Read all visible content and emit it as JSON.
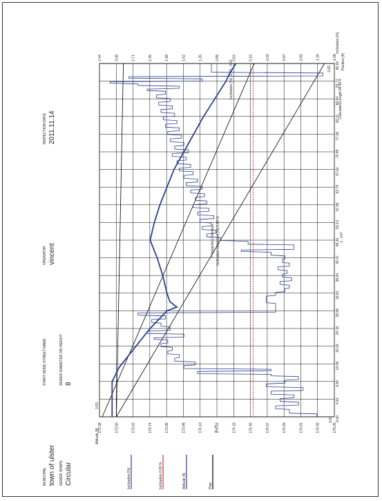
{
  "header": {
    "municipal_label": "MUNICIPAL",
    "municipal_value": "town of ulster",
    "street_label": "START NODE STREET NAME",
    "street_value": "",
    "operator_label": "OPERATOR",
    "operator_value": "vincent",
    "date_label": "INSPECTION DATE",
    "date_value": "2011.11.14",
    "shape_label": "SEWER SHAPE",
    "shape_value": "Circular",
    "diameter_label": "SEWER DIAMETER OR HEIGHT",
    "diameter_value": "8"
  },
  "colors": {
    "pipe": "#000000",
    "altitude": "#2a3f8c",
    "inclination": "#2a3f8c",
    "reference": "#e03030",
    "grid": "#000000"
  },
  "chart_data": {
    "type": "line",
    "position_axis": {
      "label": "Position [ft]",
      "ticks": [
        "0.00",
        "4.83",
        "9.66",
        "14.49",
        "19.32",
        "24.15",
        "28.98",
        "33.81",
        "38.64",
        "43.47",
        "48.30",
        "53.13",
        "57.96",
        "62.79",
        "67.62",
        "72.45",
        "77.28",
        "82.11",
        "86.94",
        "91.77",
        "96.60"
      ],
      "max": 96.6
    },
    "altitude_axis": {
      "label": "Altitude [ft]",
      "ticks": [
        "173.38",
        "173.50",
        "173.62",
        "173.74",
        "173.86",
        "173.98",
        "174.10",
        "174.22",
        "174.33",
        "174.45",
        "174.57",
        "174.69",
        "174.81",
        "174.93",
        "175.05"
      ],
      "range": [
        173.38,
        175.05
      ]
    },
    "inclination_axis": {
      "label": "Inclination [%]",
      "ticks": [
        "-1.68",
        "-1.30",
        "-0.93",
        "-0.57",
        "-0.20",
        "0.16",
        "0.53",
        "0.89",
        "1.26",
        "1.62",
        "1.98",
        "2.35",
        "2.71",
        "3.08",
        "3.44"
      ],
      "range": [
        -1.68,
        3.44
      ]
    },
    "annotations": {
      "altitude_top": "3.83",
      "inclination_top": "3.82",
      "inclination_range": "Inclination [%] -1.43 - 3.21",
      "direction": "< Inspection Direction",
      "measured": "Inclination measured [%] 0.85 %",
      "scale_position": "1 : 147",
      "scale_altitude": "1 : 4",
      "calc_length": "Calculated Length 96.60 ft"
    },
    "legend": [
      {
        "name": "Inclination [%]",
        "color": "#2a3f8c"
      },
      {
        "name": "Inclination 0.00 %",
        "color": "#e03030"
      },
      {
        "name": "Altitude [ft]",
        "color": "#2a3f8c"
      },
      {
        "name": "Pipe",
        "color": "#000000"
      }
    ],
    "pipe_lines": [
      {
        "from": [
          0,
          173.5
        ],
        "to": [
          96.6,
          174.98
        ]
      },
      {
        "from": [
          0,
          173.4
        ],
        "to": [
          96.6,
          174.48
        ]
      },
      {
        "from": [
          0,
          173.5
        ],
        "to": [
          96.6,
          173.55
        ]
      }
    ],
    "altitude_series": [
      [
        0,
        173.47
      ],
      [
        4.83,
        173.47
      ],
      [
        9.66,
        173.47
      ],
      [
        13.5,
        173.52
      ],
      [
        19.32,
        173.64
      ],
      [
        24.15,
        173.74
      ],
      [
        28.98,
        173.86
      ],
      [
        30.0,
        173.93
      ],
      [
        31.5,
        173.88
      ],
      [
        33.81,
        173.86
      ],
      [
        38.64,
        173.83
      ],
      [
        43.47,
        173.79
      ],
      [
        48.3,
        173.74
      ],
      [
        53.13,
        173.77
      ],
      [
        57.96,
        173.81
      ],
      [
        62.79,
        173.86
      ],
      [
        67.62,
        173.91
      ],
      [
        72.45,
        173.98
      ],
      [
        77.28,
        174.05
      ],
      [
        82.11,
        174.12
      ],
      [
        86.94,
        174.2
      ],
      [
        91.77,
        174.28
      ],
      [
        93.5,
        174.3
      ],
      [
        96.6,
        174.35
      ]
    ],
    "inclination_series": [
      [
        0.0,
        -1.3
      ],
      [
        0.8,
        -1.3
      ],
      [
        1.0,
        -0.7
      ],
      [
        2.0,
        -0.7
      ],
      [
        2.2,
        -0.4
      ],
      [
        3.0,
        -0.4
      ],
      [
        3.2,
        -0.9
      ],
      [
        4.0,
        -0.9
      ],
      [
        4.2,
        -0.5
      ],
      [
        5.0,
        -0.5
      ],
      [
        5.2,
        -0.8
      ],
      [
        6.0,
        -0.8
      ],
      [
        6.2,
        -0.3
      ],
      [
        7.0,
        -0.3
      ],
      [
        7.2,
        -1.0
      ],
      [
        8.0,
        -1.0
      ],
      [
        8.2,
        -0.2
      ],
      [
        9.0,
        -0.2
      ],
      [
        9.2,
        -0.6
      ],
      [
        10.0,
        -0.6
      ],
      [
        10.2,
        -0.9
      ],
      [
        11.0,
        -0.9
      ],
      [
        11.2,
        -0.3
      ],
      [
        11.6,
        -0.3
      ],
      [
        11.8,
        1.3
      ],
      [
        12.4,
        1.3
      ],
      [
        12.6,
        -0.3
      ],
      [
        13.0,
        -0.3
      ],
      [
        13.2,
        1.6
      ],
      [
        14.0,
        1.6
      ],
      [
        14.2,
        1.35
      ],
      [
        15.0,
        1.35
      ],
      [
        15.2,
        1.8
      ],
      [
        16.0,
        1.8
      ],
      [
        16.2,
        1.7
      ],
      [
        17.0,
        1.7
      ],
      [
        17.2,
        1.95
      ],
      [
        18.0,
        1.95
      ],
      [
        18.2,
        1.85
      ],
      [
        19.0,
        1.85
      ],
      [
        19.2,
        2.1
      ],
      [
        20.0,
        2.1
      ],
      [
        20.2,
        1.95
      ],
      [
        21.0,
        1.95
      ],
      [
        21.2,
        2.25
      ],
      [
        21.6,
        2.25
      ],
      [
        21.8,
        1.6
      ],
      [
        22.6,
        1.6
      ],
      [
        22.8,
        2.4
      ],
      [
        23.4,
        2.4
      ],
      [
        23.6,
        1.9
      ],
      [
        24.6,
        1.9
      ],
      [
        24.8,
        2.1
      ],
      [
        25.6,
        2.1
      ],
      [
        25.8,
        2.3
      ],
      [
        26.6,
        2.3
      ],
      [
        26.8,
        2.0
      ],
      [
        27.6,
        2.0
      ],
      [
        27.8,
        2.6
      ],
      [
        28.4,
        2.6
      ],
      [
        28.6,
        -0.4
      ],
      [
        31.0,
        -0.4
      ],
      [
        31.2,
        -0.2
      ],
      [
        33.0,
        -0.2
      ],
      [
        33.2,
        -0.4
      ],
      [
        34.0,
        -0.4
      ],
      [
        34.2,
        -0.6
      ],
      [
        35.0,
        -0.6
      ],
      [
        35.2,
        -0.7
      ],
      [
        36.0,
        -0.7
      ],
      [
        36.2,
        -0.5
      ],
      [
        37.0,
        -0.5
      ],
      [
        37.2,
        -0.75
      ],
      [
        38.0,
        -0.75
      ],
      [
        38.2,
        -0.55
      ],
      [
        39.0,
        -0.55
      ],
      [
        39.2,
        -0.65
      ],
      [
        40.0,
        -0.65
      ],
      [
        40.2,
        -0.45
      ],
      [
        41.0,
        -0.45
      ],
      [
        41.2,
        -0.7
      ],
      [
        42.0,
        -0.7
      ],
      [
        42.2,
        -0.55
      ],
      [
        43.0,
        -0.55
      ],
      [
        43.2,
        -0.6
      ],
      [
        44.0,
        -0.6
      ],
      [
        44.2,
        -0.3
      ],
      [
        45.0,
        -0.3
      ],
      [
        45.2,
        0.35
      ],
      [
        45.6,
        0.35
      ],
      [
        45.8,
        -0.8
      ],
      [
        47.0,
        -0.8
      ],
      [
        47.2,
        0.2
      ],
      [
        48.0,
        0.2
      ],
      [
        48.2,
        0.8
      ],
      [
        49.0,
        0.8
      ],
      [
        49.2,
        1.1
      ],
      [
        50.0,
        1.1
      ],
      [
        50.2,
        0.9
      ],
      [
        51.0,
        0.9
      ],
      [
        51.2,
        1.2
      ],
      [
        52.0,
        1.2
      ],
      [
        52.2,
        1.0
      ],
      [
        53.0,
        1.0
      ],
      [
        53.2,
        1.25
      ],
      [
        54.0,
        1.25
      ],
      [
        54.2,
        0.95
      ],
      [
        55.0,
        0.95
      ],
      [
        55.2,
        1.3
      ],
      [
        56.0,
        1.3
      ],
      [
        56.2,
        1.05
      ],
      [
        57.0,
        1.05
      ],
      [
        57.2,
        1.4
      ],
      [
        58.0,
        1.4
      ],
      [
        58.2,
        1.1
      ],
      [
        59.0,
        1.1
      ],
      [
        59.2,
        1.35
      ],
      [
        60.0,
        1.35
      ],
      [
        60.2,
        1.15
      ],
      [
        61.0,
        1.15
      ],
      [
        61.2,
        1.45
      ],
      [
        62.0,
        1.45
      ],
      [
        62.2,
        1.2
      ],
      [
        63.0,
        1.2
      ],
      [
        63.2,
        1.55
      ],
      [
        64.0,
        1.55
      ],
      [
        64.2,
        1.3
      ],
      [
        65.0,
        1.3
      ],
      [
        65.2,
        1.6
      ],
      [
        66.0,
        1.6
      ],
      [
        66.2,
        1.4
      ],
      [
        67.0,
        1.4
      ],
      [
        67.2,
        1.7
      ],
      [
        68.0,
        1.7
      ],
      [
        68.2,
        1.45
      ],
      [
        69.0,
        1.45
      ],
      [
        69.2,
        1.75
      ],
      [
        70.0,
        1.75
      ],
      [
        70.2,
        1.55
      ],
      [
        71.0,
        1.55
      ],
      [
        71.2,
        1.85
      ],
      [
        72.0,
        1.85
      ],
      [
        72.2,
        1.5
      ],
      [
        73.0,
        1.5
      ],
      [
        73.2,
        1.8
      ],
      [
        74.0,
        1.8
      ],
      [
        74.2,
        1.6
      ],
      [
        75.0,
        1.6
      ],
      [
        75.2,
        1.9
      ],
      [
        76.0,
        1.9
      ],
      [
        76.2,
        1.65
      ],
      [
        77.0,
        1.65
      ],
      [
        77.2,
        1.95
      ],
      [
        78.0,
        1.95
      ],
      [
        78.2,
        1.7
      ],
      [
        79.0,
        1.7
      ],
      [
        79.2,
        2.0
      ],
      [
        80.0,
        2.0
      ],
      [
        80.2,
        1.75
      ],
      [
        81.0,
        1.75
      ],
      [
        81.2,
        2.05
      ],
      [
        82.0,
        2.05
      ],
      [
        82.2,
        1.8
      ],
      [
        83.0,
        1.8
      ],
      [
        83.2,
        2.1
      ],
      [
        84.0,
        2.1
      ],
      [
        84.2,
        1.85
      ],
      [
        85.0,
        1.85
      ],
      [
        85.2,
        2.15
      ],
      [
        86.0,
        2.15
      ],
      [
        86.2,
        1.9
      ],
      [
        87.0,
        1.9
      ],
      [
        87.2,
        2.2
      ],
      [
        88.0,
        2.2
      ],
      [
        88.2,
        2.0
      ],
      [
        89.0,
        2.0
      ],
      [
        89.2,
        2.4
      ],
      [
        89.6,
        2.4
      ],
      [
        89.8,
        1.7
      ],
      [
        90.4,
        1.7
      ],
      [
        90.6,
        2.6
      ],
      [
        91.0,
        2.6
      ],
      [
        91.2,
        3.21
      ],
      [
        91.6,
        3.21
      ],
      [
        91.8,
        1.2
      ],
      [
        92.4,
        1.2
      ],
      [
        92.6,
        2.8
      ],
      [
        93.0,
        2.8
      ],
      [
        93.2,
        -1.43
      ],
      [
        94.0,
        -1.43
      ],
      [
        94.2,
        1.0
      ],
      [
        96.6,
        1.0
      ]
    ]
  }
}
